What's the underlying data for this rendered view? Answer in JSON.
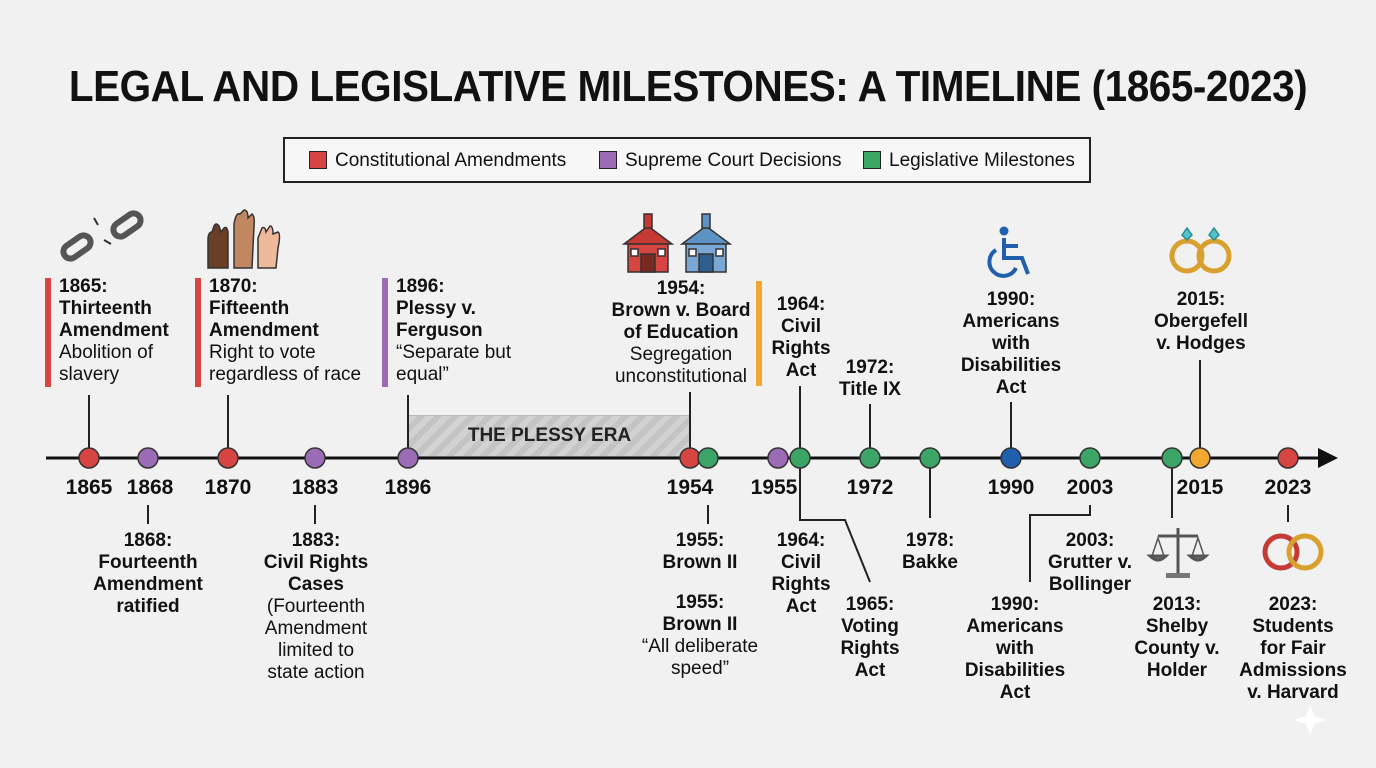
{
  "title": "LEGAL AND LEGISLATIVE MILESTONES: A TIMELINE (1865-2023)",
  "legend": [
    {
      "label": "Constitutional Amendments",
      "color": "#d64541"
    },
    {
      "label": "Supreme Court Decisions",
      "color": "#9b6bb5"
    },
    {
      "label": "Legislative Milestones",
      "color": "#3aa564"
    }
  ],
  "era_label": "THE PLESSY ERA",
  "colors": {
    "amendment": "#d64541",
    "court": "#9b6bb5",
    "legislative": "#3aa564",
    "orange": "#f0a830",
    "blue": "#1f5fae"
  },
  "year_ticks": [
    "1865",
    "1868",
    "1870",
    "1883",
    "1896",
    "1954",
    "1955",
    "1972",
    "1990",
    "2003",
    "2015",
    "2023"
  ],
  "events_top": [
    {
      "date": "1865:",
      "title": "Thirteenth Amendment",
      "desc": "Abolition of slavery"
    },
    {
      "date": "1870:",
      "title": "Fifteenth Amendment",
      "desc": "Right to vote regardless of race"
    },
    {
      "date": "1896:",
      "title": "Plessy v. Ferguson",
      "desc": "“Separate but equal”"
    },
    {
      "date": "1954:",
      "title": "Brown v. Board of Education",
      "desc": "Segregation unconstitutional"
    },
    {
      "date": "1964:",
      "title": "Civil Rights Act"
    },
    {
      "date": "1972:",
      "title": "Title IX"
    },
    {
      "date": "1990:",
      "title": "Americans with Disabilities Act"
    },
    {
      "date": "2015:",
      "title": "Obergefell v. Hodges"
    }
  ],
  "events_bottom": [
    {
      "date": "1868:",
      "title": "Fourteenth Amendment ratified"
    },
    {
      "date": "1883:",
      "title": "Civil Rights Cases",
      "desc": "(Fourteenth Amendment limited to state action"
    },
    {
      "date": "1955:",
      "title": "Brown II"
    },
    {
      "date": "1955:",
      "title": "Brown II",
      "desc": "“All deliberate speed”"
    },
    {
      "date": "1964:",
      "title": "Civil Rights Act"
    },
    {
      "date": "1965:",
      "title": "Voting Rights Act"
    },
    {
      "date": "1978:",
      "title": "Bakke"
    },
    {
      "date": "1990:",
      "title": "Americans with Disabilities Act"
    },
    {
      "date": "2003:",
      "title": "Grutter v. Bollinger"
    },
    {
      "date": "2013:",
      "title": "Shelby County v. Holder"
    },
    {
      "date": "2023:",
      "title": "Students for Fair Admissions v. Harvard"
    }
  ],
  "icons": [
    "broken-chain-icon",
    "raised-hands-icon",
    "schoolhouse-icon",
    "wheelchair-icon",
    "wedding-rings-icon",
    "scales-of-justice-icon",
    "interlocked-rings-icon"
  ]
}
